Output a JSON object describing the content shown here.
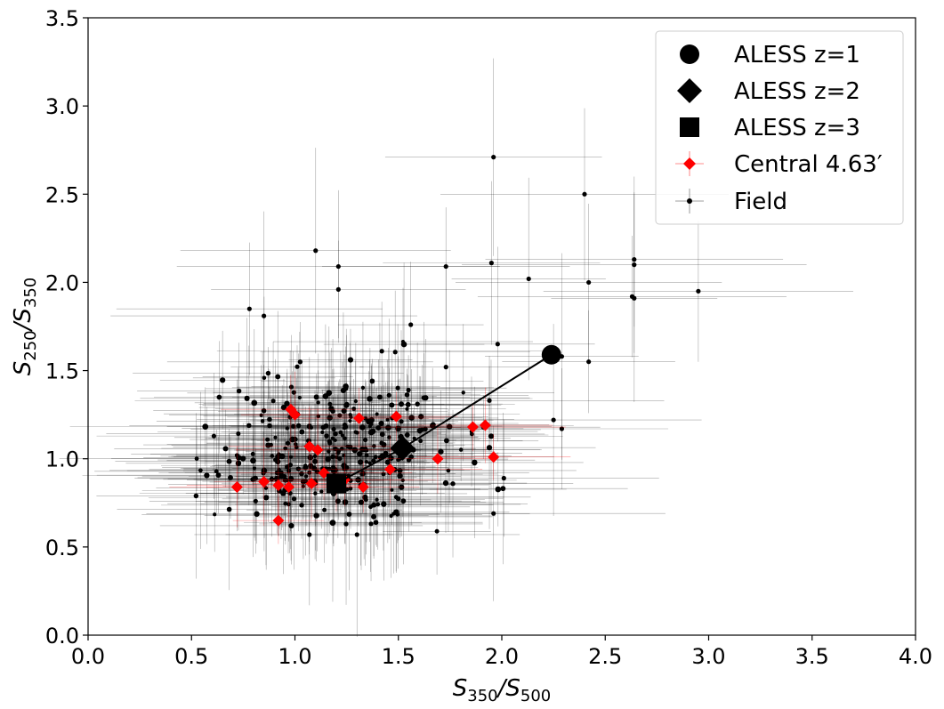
{
  "chart_data": {
    "type": "scatter",
    "xlabel": {
      "main": "S",
      "sub1": "350",
      "sep": "/S",
      "sub2": "500"
    },
    "ylabel": {
      "main": "S",
      "sub1": "250",
      "sep": "/S",
      "sub2": "350"
    },
    "xlim": [
      0,
      4
    ],
    "ylim": [
      0,
      3.5
    ],
    "x_ticks": [
      "0.0",
      "0.5",
      "1.0",
      "1.5",
      "2.0",
      "2.5",
      "3.0",
      "3.5",
      "4.0"
    ],
    "y_ticks": [
      "0.0",
      "0.5",
      "1.0",
      "1.5",
      "2.0",
      "2.5",
      "3.0",
      "3.5"
    ],
    "grid": false,
    "legend_position": "top-right",
    "legend": [
      {
        "label": "ALESS z=1",
        "marker": "circle",
        "color": "#000000"
      },
      {
        "label": "ALESS z=2",
        "marker": "diamond",
        "color": "#000000"
      },
      {
        "label": "ALESS z=3",
        "marker": "square",
        "color": "#000000"
      },
      {
        "label": "Central 4.63′",
        "marker": "diamond-errorbar",
        "color": "#ff0000"
      },
      {
        "label": "Field",
        "marker": "dot-errorbar",
        "color": "#000000"
      }
    ],
    "aless_track": [
      {
        "name": "z=1",
        "x": 2.24,
        "y": 1.59
      },
      {
        "name": "z=2",
        "x": 1.52,
        "y": 1.06
      },
      {
        "name": "z=3",
        "x": 1.2,
        "y": 0.86
      }
    ],
    "central": [
      [
        0.72,
        0.84
      ],
      [
        0.85,
        0.87
      ],
      [
        0.92,
        0.85
      ],
      [
        0.97,
        0.84
      ],
      [
        0.92,
        0.65
      ],
      [
        0.98,
        1.28
      ],
      [
        1.0,
        1.25
      ],
      [
        1.07,
        1.07
      ],
      [
        1.11,
        1.05
      ],
      [
        1.08,
        0.86
      ],
      [
        1.14,
        0.92
      ],
      [
        1.2,
        0.88
      ],
      [
        1.24,
        0.88
      ],
      [
        1.31,
        1.23
      ],
      [
        1.33,
        0.84
      ],
      [
        1.46,
        0.94
      ],
      [
        1.49,
        1.24
      ],
      [
        1.69,
        1.0
      ],
      [
        1.86,
        1.18
      ],
      [
        1.92,
        1.19
      ],
      [
        1.96,
        1.01
      ]
    ],
    "field_outliers": [
      [
        1.96,
        2.71
      ],
      [
        2.4,
        2.5
      ],
      [
        1.1,
        2.18
      ],
      [
        2.64,
        2.13
      ],
      [
        2.64,
        2.1
      ],
      [
        1.21,
        2.09
      ],
      [
        1.73,
        2.09
      ],
      [
        1.95,
        2.11
      ],
      [
        2.13,
        2.02
      ],
      [
        2.42,
        2.0
      ],
      [
        1.21,
        1.96
      ],
      [
        2.95,
        1.95
      ],
      [
        2.63,
        1.92
      ],
      [
        2.64,
        1.91
      ],
      [
        0.78,
        1.85
      ],
      [
        0.85,
        1.81
      ],
      [
        1.56,
        1.76
      ],
      [
        1.98,
        1.65
      ],
      [
        2.29,
        1.58
      ],
      [
        2.42,
        1.55
      ],
      [
        1.42,
        1.61
      ],
      [
        1.73,
        1.52
      ],
      [
        1.94,
        1.33
      ],
      [
        2.25,
        1.22
      ],
      [
        2.29,
        1.17
      ],
      [
        2.01,
        0.89
      ],
      [
        1.96,
        0.69
      ],
      [
        0.81,
        0.76
      ],
      [
        1.07,
        0.57
      ],
      [
        1.3,
        0.57
      ]
    ]
  }
}
